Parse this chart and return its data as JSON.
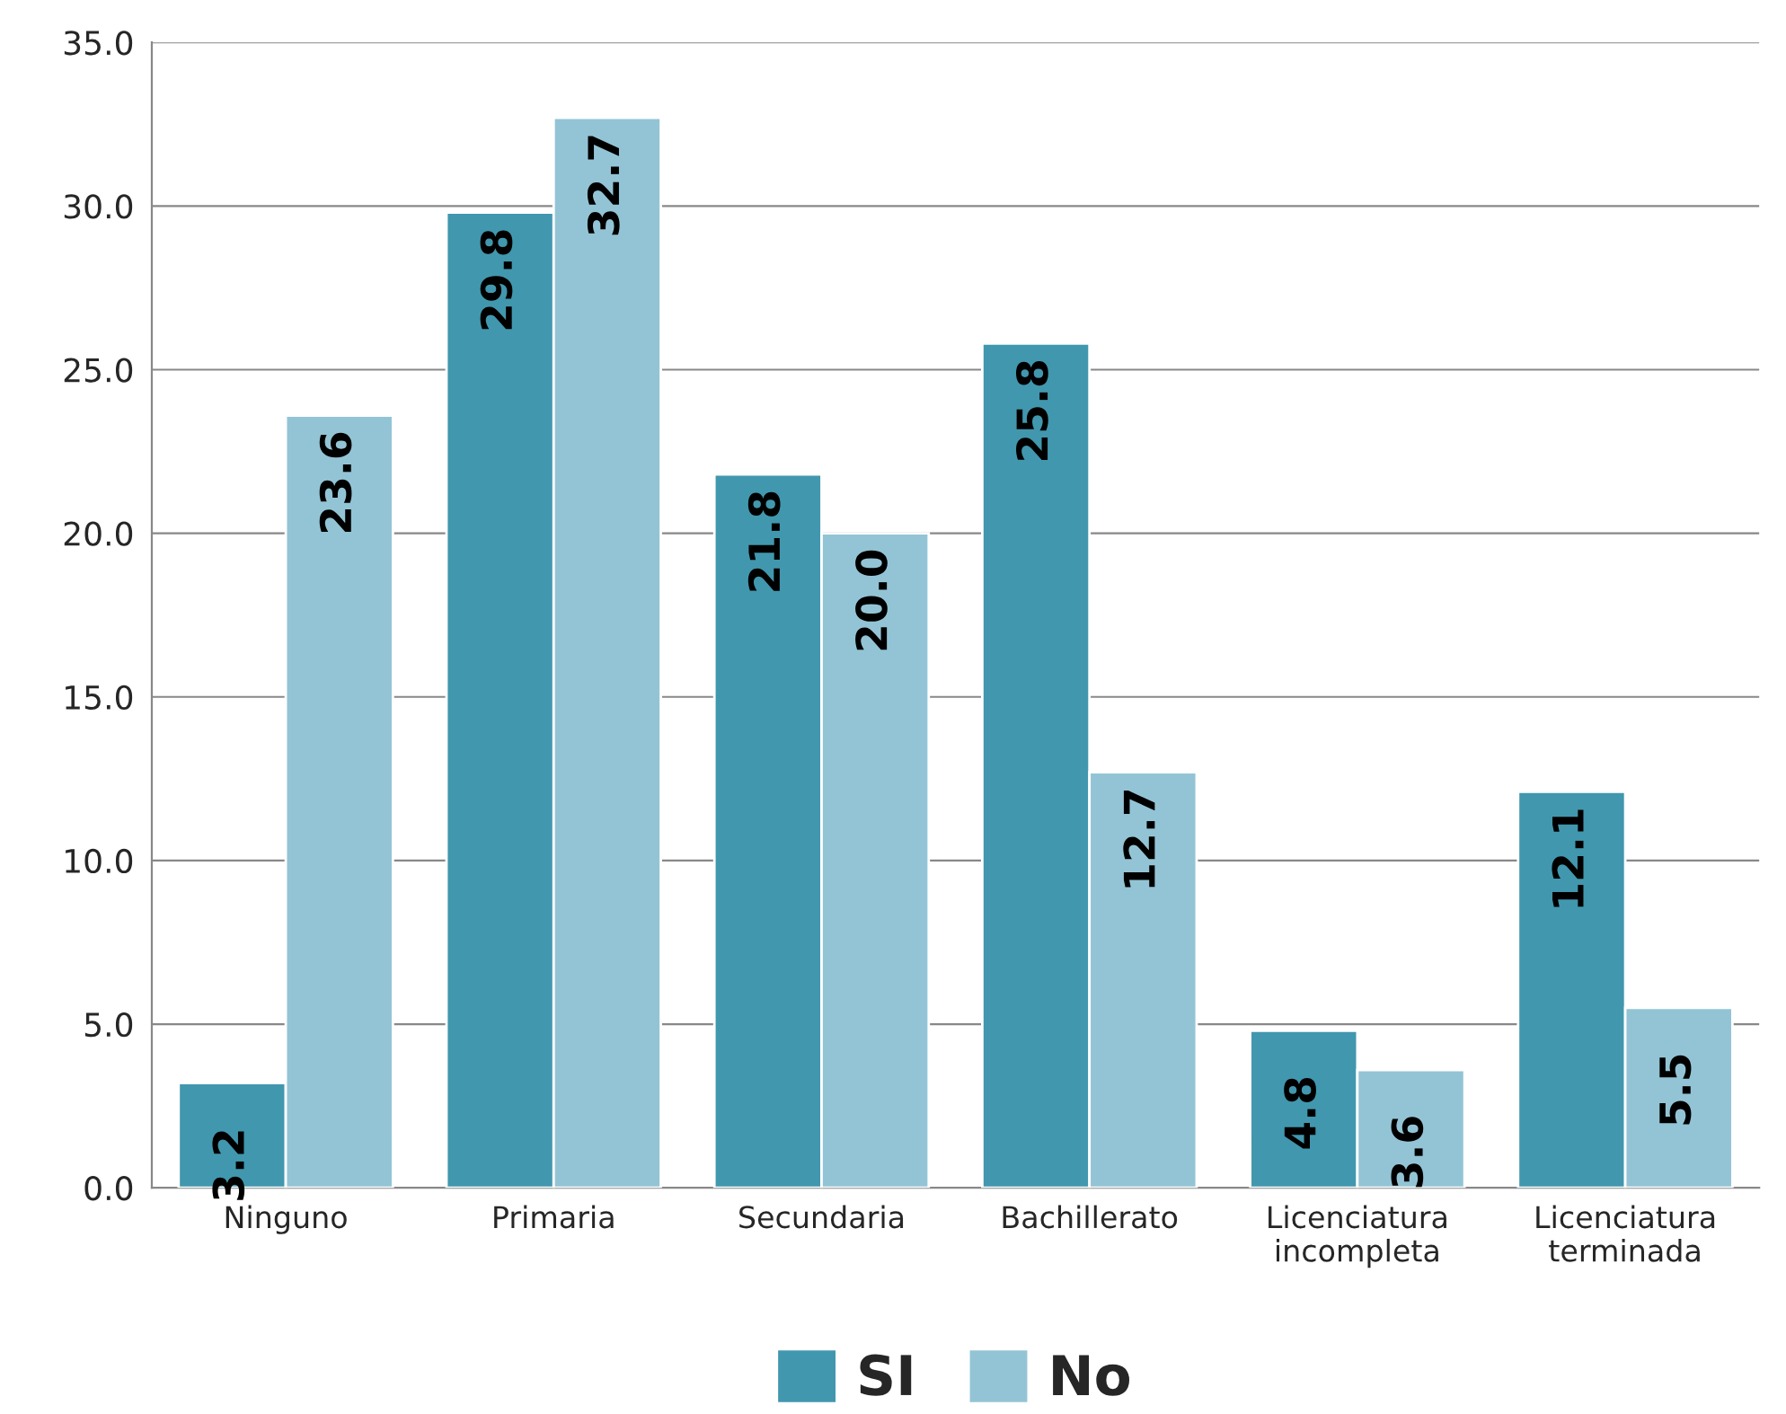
{
  "chart_data": {
    "type": "bar",
    "categories": [
      "Ninguno",
      "Primaria",
      "Secundaria",
      "Bachillerato",
      "Licenciatura\nincompleta",
      "Licenciatura\nterminada"
    ],
    "series": [
      {
        "name": "SI",
        "color": "#4197ae",
        "values": [
          3.2,
          29.8,
          21.8,
          25.8,
          4.8,
          12.1
        ],
        "value_labels": [
          "3.2",
          "29.8",
          "21.8",
          "25.8",
          "4.8",
          "12.1"
        ]
      },
      {
        "name": "No",
        "color": "#93c4d5",
        "values": [
          23.6,
          32.7,
          20.0,
          12.7,
          3.6,
          5.5
        ],
        "value_labels": [
          "23.6",
          "32.7",
          "20.0",
          "12.7",
          "3.6",
          "5.5"
        ]
      }
    ],
    "ylim": [
      0,
      35
    ],
    "yticks": [
      {
        "value": 0,
        "label": "0.0"
      },
      {
        "value": 5,
        "label": "5.0"
      },
      {
        "value": 10,
        "label": "10.0"
      },
      {
        "value": 15,
        "label": "15.0"
      },
      {
        "value": 20,
        "label": "20.0"
      },
      {
        "value": 25,
        "label": "25.0"
      },
      {
        "value": 30,
        "label": "30.0"
      },
      {
        "value": 35,
        "label": "35.0"
      }
    ],
    "grid": "y",
    "legend": "bottom"
  }
}
